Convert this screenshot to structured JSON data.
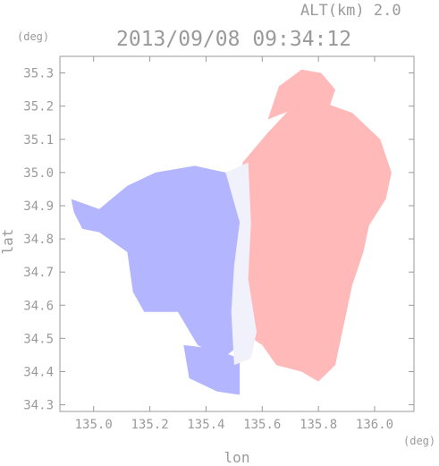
{
  "header": {
    "altitude": "ALT(km) 2.0",
    "timestamp": "2013/09/08 09:34:12",
    "y_unit": "(deg)",
    "x_unit": "(deg)"
  },
  "chart_data": {
    "type": "heatmap",
    "title": "2013/09/08 09:34:12",
    "subtitle": "ALT(km) 2.0",
    "xlabel": "lon",
    "ylabel": "lat",
    "xlim": [
      134.88,
      136.14
    ],
    "ylim": [
      34.28,
      35.35
    ],
    "x_ticks": [
      "135.0",
      "135.2",
      "135.4",
      "135.6",
      "135.8",
      "136.0"
    ],
    "x_tick_values": [
      135.0,
      135.2,
      135.4,
      135.6,
      135.8,
      136.0
    ],
    "y_ticks": [
      "34.3",
      "34.4",
      "34.5",
      "34.6",
      "34.7",
      "34.8",
      "34.9",
      "35.0",
      "35.1",
      "35.2",
      "35.3"
    ],
    "y_tick_values": [
      34.3,
      34.4,
      34.5,
      34.6,
      34.7,
      34.8,
      34.9,
      35.0,
      35.1,
      35.2,
      35.3
    ],
    "colors": {
      "negative": "#b3b6ff",
      "near_zero": "#f1f1fb",
      "positive": "#ffb9b9",
      "axis": "#9a9a9a"
    },
    "regions": [
      {
        "sign": "negative",
        "polygon": [
          [
            134.92,
            34.92
          ],
          [
            135.02,
            34.89
          ],
          [
            135.12,
            34.96
          ],
          [
            135.22,
            35.0
          ],
          [
            135.36,
            35.02
          ],
          [
            135.47,
            35.0
          ],
          [
            135.53,
            34.99
          ],
          [
            135.53,
            34.82
          ],
          [
            135.52,
            34.74
          ],
          [
            135.5,
            34.62
          ],
          [
            135.52,
            34.48
          ],
          [
            135.46,
            34.44
          ],
          [
            135.37,
            34.48
          ],
          [
            135.3,
            34.58
          ],
          [
            135.18,
            34.58
          ],
          [
            135.14,
            34.64
          ],
          [
            135.12,
            34.76
          ],
          [
            135.02,
            34.82
          ],
          [
            134.96,
            34.83
          ],
          [
            134.93,
            34.88
          ]
        ]
      },
      {
        "sign": "negative",
        "polygon": [
          [
            135.32,
            34.48
          ],
          [
            135.42,
            34.47
          ],
          [
            135.52,
            34.44
          ],
          [
            135.52,
            34.33
          ],
          [
            135.44,
            34.34
          ],
          [
            135.34,
            34.38
          ]
        ]
      },
      {
        "sign": "positive",
        "polygon": [
          [
            135.53,
            35.03
          ],
          [
            135.62,
            35.12
          ],
          [
            135.72,
            35.21
          ],
          [
            135.82,
            35.21
          ],
          [
            135.92,
            35.18
          ],
          [
            136.02,
            35.1
          ],
          [
            136.06,
            35.0
          ],
          [
            136.04,
            34.92
          ],
          [
            135.98,
            34.84
          ],
          [
            135.96,
            34.76
          ],
          [
            135.92,
            34.66
          ],
          [
            135.88,
            34.5
          ],
          [
            135.86,
            34.42
          ],
          [
            135.8,
            34.37
          ],
          [
            135.74,
            34.4
          ],
          [
            135.65,
            34.42
          ],
          [
            135.6,
            34.48
          ],
          [
            135.53,
            34.52
          ],
          [
            135.53,
            34.62
          ],
          [
            135.52,
            34.74
          ],
          [
            135.53,
            34.82
          ]
        ]
      },
      {
        "sign": "positive",
        "polygon": [
          [
            135.62,
            35.16
          ],
          [
            135.66,
            35.26
          ],
          [
            135.74,
            35.31
          ],
          [
            135.81,
            35.3
          ],
          [
            135.86,
            35.25
          ],
          [
            135.84,
            35.2
          ],
          [
            135.74,
            35.2
          ]
        ]
      },
      {
        "sign": "near_zero",
        "polygon": [
          [
            135.47,
            35.0
          ],
          [
            135.55,
            35.03
          ],
          [
            135.56,
            34.85
          ],
          [
            135.55,
            34.68
          ],
          [
            135.58,
            34.52
          ],
          [
            135.56,
            34.44
          ],
          [
            135.5,
            34.42
          ],
          [
            135.49,
            34.58
          ],
          [
            135.5,
            34.72
          ],
          [
            135.52,
            34.85
          ]
        ]
      }
    ]
  }
}
